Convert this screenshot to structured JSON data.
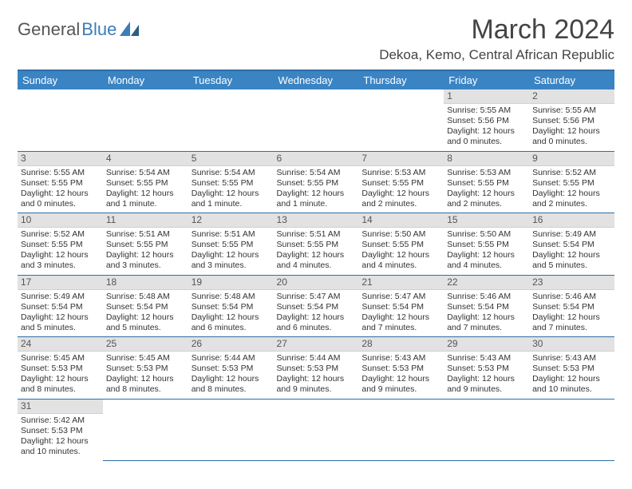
{
  "logo": {
    "text_general": "General",
    "text_blue": "Blue"
  },
  "title": "March 2024",
  "location": "Dekoa, Kemo, Central African Republic",
  "colors": {
    "header_bg": "#3a84c4",
    "divider": "#2f6ea8",
    "daynum_bg": "#e2e2e2",
    "logo_blue": "#3a7db8"
  },
  "weekdays": [
    "Sunday",
    "Monday",
    "Tuesday",
    "Wednesday",
    "Thursday",
    "Friday",
    "Saturday"
  ],
  "weeks": [
    [
      {
        "empty": true
      },
      {
        "empty": true
      },
      {
        "empty": true
      },
      {
        "empty": true
      },
      {
        "empty": true
      },
      {
        "num": "1",
        "sunrise": "Sunrise: 5:55 AM",
        "sunset": "Sunset: 5:56 PM",
        "daylight": "Daylight: 12 hours and 0 minutes."
      },
      {
        "num": "2",
        "sunrise": "Sunrise: 5:55 AM",
        "sunset": "Sunset: 5:56 PM",
        "daylight": "Daylight: 12 hours and 0 minutes."
      }
    ],
    [
      {
        "num": "3",
        "sunrise": "Sunrise: 5:55 AM",
        "sunset": "Sunset: 5:55 PM",
        "daylight": "Daylight: 12 hours and 0 minutes."
      },
      {
        "num": "4",
        "sunrise": "Sunrise: 5:54 AM",
        "sunset": "Sunset: 5:55 PM",
        "daylight": "Daylight: 12 hours and 1 minute."
      },
      {
        "num": "5",
        "sunrise": "Sunrise: 5:54 AM",
        "sunset": "Sunset: 5:55 PM",
        "daylight": "Daylight: 12 hours and 1 minute."
      },
      {
        "num": "6",
        "sunrise": "Sunrise: 5:54 AM",
        "sunset": "Sunset: 5:55 PM",
        "daylight": "Daylight: 12 hours and 1 minute."
      },
      {
        "num": "7",
        "sunrise": "Sunrise: 5:53 AM",
        "sunset": "Sunset: 5:55 PM",
        "daylight": "Daylight: 12 hours and 2 minutes."
      },
      {
        "num": "8",
        "sunrise": "Sunrise: 5:53 AM",
        "sunset": "Sunset: 5:55 PM",
        "daylight": "Daylight: 12 hours and 2 minutes."
      },
      {
        "num": "9",
        "sunrise": "Sunrise: 5:52 AM",
        "sunset": "Sunset: 5:55 PM",
        "daylight": "Daylight: 12 hours and 2 minutes."
      }
    ],
    [
      {
        "num": "10",
        "sunrise": "Sunrise: 5:52 AM",
        "sunset": "Sunset: 5:55 PM",
        "daylight": "Daylight: 12 hours and 3 minutes."
      },
      {
        "num": "11",
        "sunrise": "Sunrise: 5:51 AM",
        "sunset": "Sunset: 5:55 PM",
        "daylight": "Daylight: 12 hours and 3 minutes."
      },
      {
        "num": "12",
        "sunrise": "Sunrise: 5:51 AM",
        "sunset": "Sunset: 5:55 PM",
        "daylight": "Daylight: 12 hours and 3 minutes."
      },
      {
        "num": "13",
        "sunrise": "Sunrise: 5:51 AM",
        "sunset": "Sunset: 5:55 PM",
        "daylight": "Daylight: 12 hours and 4 minutes."
      },
      {
        "num": "14",
        "sunrise": "Sunrise: 5:50 AM",
        "sunset": "Sunset: 5:55 PM",
        "daylight": "Daylight: 12 hours and 4 minutes."
      },
      {
        "num": "15",
        "sunrise": "Sunrise: 5:50 AM",
        "sunset": "Sunset: 5:55 PM",
        "daylight": "Daylight: 12 hours and 4 minutes."
      },
      {
        "num": "16",
        "sunrise": "Sunrise: 5:49 AM",
        "sunset": "Sunset: 5:54 PM",
        "daylight": "Daylight: 12 hours and 5 minutes."
      }
    ],
    [
      {
        "num": "17",
        "sunrise": "Sunrise: 5:49 AM",
        "sunset": "Sunset: 5:54 PM",
        "daylight": "Daylight: 12 hours and 5 minutes."
      },
      {
        "num": "18",
        "sunrise": "Sunrise: 5:48 AM",
        "sunset": "Sunset: 5:54 PM",
        "daylight": "Daylight: 12 hours and 5 minutes."
      },
      {
        "num": "19",
        "sunrise": "Sunrise: 5:48 AM",
        "sunset": "Sunset: 5:54 PM",
        "daylight": "Daylight: 12 hours and 6 minutes."
      },
      {
        "num": "20",
        "sunrise": "Sunrise: 5:47 AM",
        "sunset": "Sunset: 5:54 PM",
        "daylight": "Daylight: 12 hours and 6 minutes."
      },
      {
        "num": "21",
        "sunrise": "Sunrise: 5:47 AM",
        "sunset": "Sunset: 5:54 PM",
        "daylight": "Daylight: 12 hours and 7 minutes."
      },
      {
        "num": "22",
        "sunrise": "Sunrise: 5:46 AM",
        "sunset": "Sunset: 5:54 PM",
        "daylight": "Daylight: 12 hours and 7 minutes."
      },
      {
        "num": "23",
        "sunrise": "Sunrise: 5:46 AM",
        "sunset": "Sunset: 5:54 PM",
        "daylight": "Daylight: 12 hours and 7 minutes."
      }
    ],
    [
      {
        "num": "24",
        "sunrise": "Sunrise: 5:45 AM",
        "sunset": "Sunset: 5:53 PM",
        "daylight": "Daylight: 12 hours and 8 minutes."
      },
      {
        "num": "25",
        "sunrise": "Sunrise: 5:45 AM",
        "sunset": "Sunset: 5:53 PM",
        "daylight": "Daylight: 12 hours and 8 minutes."
      },
      {
        "num": "26",
        "sunrise": "Sunrise: 5:44 AM",
        "sunset": "Sunset: 5:53 PM",
        "daylight": "Daylight: 12 hours and 8 minutes."
      },
      {
        "num": "27",
        "sunrise": "Sunrise: 5:44 AM",
        "sunset": "Sunset: 5:53 PM",
        "daylight": "Daylight: 12 hours and 9 minutes."
      },
      {
        "num": "28",
        "sunrise": "Sunrise: 5:43 AM",
        "sunset": "Sunset: 5:53 PM",
        "daylight": "Daylight: 12 hours and 9 minutes."
      },
      {
        "num": "29",
        "sunrise": "Sunrise: 5:43 AM",
        "sunset": "Sunset: 5:53 PM",
        "daylight": "Daylight: 12 hours and 9 minutes."
      },
      {
        "num": "30",
        "sunrise": "Sunrise: 5:43 AM",
        "sunset": "Sunset: 5:53 PM",
        "daylight": "Daylight: 12 hours and 10 minutes."
      }
    ],
    [
      {
        "num": "31",
        "sunrise": "Sunrise: 5:42 AM",
        "sunset": "Sunset: 5:53 PM",
        "daylight": "Daylight: 12 hours and 10 minutes."
      },
      {
        "empty": true
      },
      {
        "empty": true
      },
      {
        "empty": true
      },
      {
        "empty": true
      },
      {
        "empty": true
      },
      {
        "empty": true
      }
    ]
  ]
}
